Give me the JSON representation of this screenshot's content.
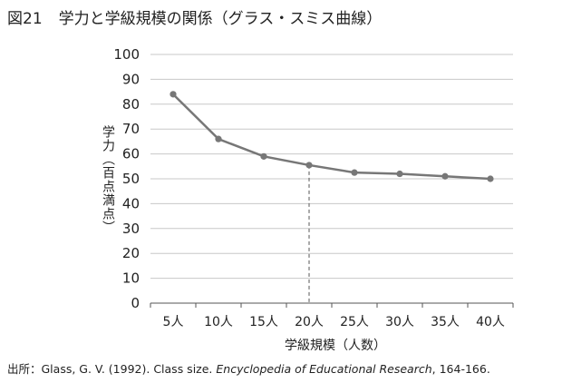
{
  "figure": {
    "number": "図21",
    "title": "学力と学級規模の関係（グラス・スミス曲線）"
  },
  "source": {
    "prefix": "出所：Glass, G. V. (1992). Class size. ",
    "journal": "Encyclopedia of Educational Research",
    "suffix": ", 164-166."
  },
  "chart_data": {
    "type": "line",
    "categories": [
      "5人",
      "10人",
      "15人",
      "20人",
      "25人",
      "30人",
      "35人",
      "40人"
    ],
    "series": [
      {
        "values": [
          84,
          66,
          59,
          55.5,
          52.5,
          52,
          51,
          50
        ]
      }
    ],
    "xlabel": "学級規模（人数）",
    "ylabel": "学力（百点満点）",
    "ylim": [
      0,
      100
    ],
    "yticks": [
      0,
      10,
      20,
      30,
      40,
      50,
      60,
      70,
      80,
      90,
      100
    ],
    "grid": "horizontal",
    "reference_line": {
      "category": "20人",
      "value": 55.5,
      "style": "dashed"
    },
    "colors": {
      "line": "#777777",
      "marker": "#777777",
      "grid": "#c8c8c8",
      "axis": "#555555"
    }
  }
}
